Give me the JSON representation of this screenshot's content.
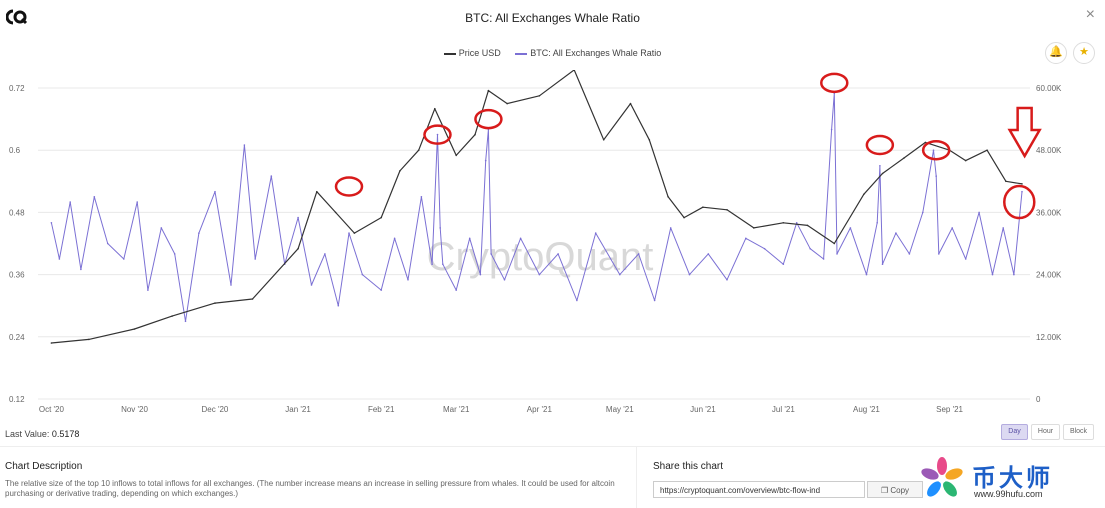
{
  "header": {
    "title": "BTC: All Exchanges Whale Ratio",
    "close_symbol": "×"
  },
  "legend": [
    {
      "label": "Price USD",
      "color": "#333333"
    },
    {
      "label": "BTC: All Exchanges Whale Ratio",
      "color": "#7b70d4"
    }
  ],
  "controls": {
    "bell_symbol": "🔔",
    "star_symbol": "★"
  },
  "footer": {
    "last_value_label": "Last Value:",
    "last_value": "0.5178",
    "granularity": [
      "Day",
      "Hour",
      "Block"
    ],
    "active_granularity": "Day",
    "description_title": "Chart Description",
    "description_text": "The relative size of the top 10 inflows to total inflows for all exchanges. (The number increase means an increase in selling pressure from whales. It could be used for altcoin purchasing or derivative trading, depending on which exchanges.)",
    "share_title": "Share this chart",
    "share_url": "https://cryptoquant.com/overview/btc-flow-ind",
    "copy_label": "Copy",
    "brand_cn": "币大师",
    "brand_url": "www.99hufu.com"
  },
  "chart_data": {
    "type": "line",
    "watermark": "CryptoQuant",
    "x_tick_labels": [
      "Oct '20",
      "Nov '20",
      "Dec '20",
      "Jan '21",
      "Feb '21",
      "Mar '21",
      "Apr '21",
      "May '21",
      "Jun '21",
      "Jul '21",
      "Aug '21",
      "Sep '21"
    ],
    "y_left": {
      "ticks": [
        "0.12",
        "0.24",
        "0.36",
        "0.48",
        "0.6",
        "0.72"
      ],
      "range": [
        0.12,
        0.72
      ]
    },
    "y_right": {
      "ticks": [
        "0",
        "12.00K",
        "24.00K",
        "36.00K",
        "48.00K",
        "60.00K"
      ],
      "range": [
        0,
        60000
      ]
    },
    "series": [
      {
        "name": "Price USD",
        "axis": "right",
        "color": "#333333",
        "x": [
          "2020-10-01",
          "2020-10-15",
          "2020-11-01",
          "2020-11-15",
          "2020-12-01",
          "2020-12-15",
          "2021-01-01",
          "2021-01-08",
          "2021-01-15",
          "2021-01-22",
          "2021-02-01",
          "2021-02-08",
          "2021-02-15",
          "2021-02-21",
          "2021-03-01",
          "2021-03-08",
          "2021-03-13",
          "2021-03-20",
          "2021-04-01",
          "2021-04-14",
          "2021-04-25",
          "2021-05-05",
          "2021-05-12",
          "2021-05-19",
          "2021-05-25",
          "2021-06-01",
          "2021-06-10",
          "2021-06-20",
          "2021-07-01",
          "2021-07-10",
          "2021-07-20",
          "2021-07-31",
          "2021-08-07",
          "2021-08-15",
          "2021-08-23",
          "2021-09-01",
          "2021-09-07",
          "2021-09-15",
          "2021-09-22",
          "2021-09-28"
        ],
        "values": [
          10800,
          11500,
          13500,
          16000,
          18500,
          19300,
          29000,
          40000,
          36000,
          32000,
          35000,
          44000,
          48000,
          56000,
          47000,
          51000,
          59500,
          57000,
          58500,
          63500,
          50000,
          57000,
          50000,
          39000,
          35000,
          37000,
          36500,
          33000,
          34000,
          33500,
          30000,
          39500,
          43500,
          46500,
          49500,
          48000,
          46000,
          48000,
          42000,
          41500
        ]
      },
      {
        "name": "BTC: All Exchanges Whale Ratio",
        "axis": "left",
        "color": "#7b70d4",
        "x": [
          "2020-10-01",
          "2020-10-04",
          "2020-10-08",
          "2020-10-12",
          "2020-10-17",
          "2020-10-22",
          "2020-10-28",
          "2020-11-02",
          "2020-11-06",
          "2020-11-11",
          "2020-11-16",
          "2020-11-20",
          "2020-11-25",
          "2020-12-01",
          "2020-12-07",
          "2020-12-12",
          "2020-12-16",
          "2020-12-22",
          "2020-12-27",
          "2021-01-01",
          "2021-01-06",
          "2021-01-11",
          "2021-01-16",
          "2021-01-20",
          "2021-01-25",
          "2021-02-01",
          "2021-02-06",
          "2021-02-11",
          "2021-02-16",
          "2021-02-20",
          "2021-02-22",
          "2021-02-23",
          "2021-02-24",
          "2021-03-01",
          "2021-03-06",
          "2021-03-10",
          "2021-03-12",
          "2021-03-13",
          "2021-03-14",
          "2021-03-19",
          "2021-03-25",
          "2021-04-01",
          "2021-04-08",
          "2021-04-15",
          "2021-04-22",
          "2021-05-01",
          "2021-05-08",
          "2021-05-14",
          "2021-05-20",
          "2021-05-27",
          "2021-06-03",
          "2021-06-10",
          "2021-06-17",
          "2021-06-24",
          "2021-07-01",
          "2021-07-06",
          "2021-07-11",
          "2021-07-16",
          "2021-07-19",
          "2021-07-20",
          "2021-07-21",
          "2021-07-26",
          "2021-08-01",
          "2021-08-05",
          "2021-08-06",
          "2021-08-07",
          "2021-08-12",
          "2021-08-17",
          "2021-08-22",
          "2021-08-26",
          "2021-08-27",
          "2021-08-28",
          "2021-09-02",
          "2021-09-07",
          "2021-09-12",
          "2021-09-17",
          "2021-09-21",
          "2021-09-25",
          "2021-09-28"
        ],
        "values": [
          0.46,
          0.39,
          0.5,
          0.37,
          0.51,
          0.42,
          0.39,
          0.5,
          0.33,
          0.45,
          0.4,
          0.27,
          0.44,
          0.52,
          0.34,
          0.61,
          0.39,
          0.55,
          0.38,
          0.47,
          0.34,
          0.4,
          0.3,
          0.44,
          0.36,
          0.33,
          0.43,
          0.35,
          0.51,
          0.38,
          0.63,
          0.45,
          0.38,
          0.33,
          0.43,
          0.36,
          0.58,
          0.64,
          0.4,
          0.35,
          0.43,
          0.36,
          0.4,
          0.31,
          0.44,
          0.36,
          0.4,
          0.31,
          0.45,
          0.36,
          0.4,
          0.35,
          0.43,
          0.41,
          0.38,
          0.46,
          0.41,
          0.39,
          0.64,
          0.71,
          0.4,
          0.45,
          0.36,
          0.46,
          0.57,
          0.38,
          0.44,
          0.4,
          0.48,
          0.6,
          0.55,
          0.4,
          0.45,
          0.39,
          0.48,
          0.36,
          0.45,
          0.36,
          0.52
        ]
      }
    ],
    "annotations": [
      "red circle highlights on whale ratio spikes",
      "red downward arrow at latest value"
    ]
  }
}
